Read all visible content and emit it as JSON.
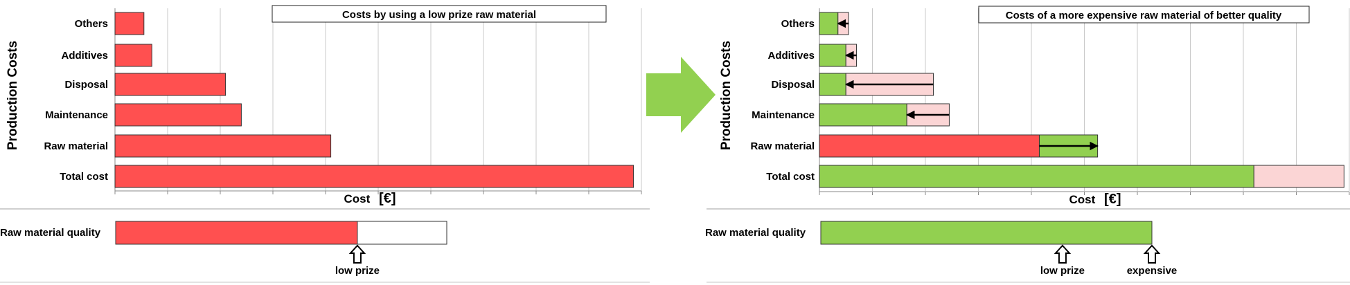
{
  "colors": {
    "red": "#ff5050",
    "green": "#92d050",
    "pink": "#fbd5d5",
    "arrow_fill": "#92d050",
    "grid": "#c8c8c8",
    "border": "#222222"
  },
  "center_arrow": {
    "icon": "right-arrow-icon"
  },
  "chart_data": [
    {
      "type": "bar",
      "orientation": "horizontal",
      "title": "Costs by using a low prize raw material",
      "ylabel": "Production Costs",
      "xlabel": "Cost",
      "xunit": "[€]",
      "categories": [
        "Others",
        "Additives",
        "Disposal",
        "Maintenance",
        "Raw material",
        "Total cost"
      ],
      "xlim": [
        0,
        100
      ],
      "grid": true,
      "series": [
        {
          "color": "#ff5050",
          "values": [
            5.5,
            7,
            21,
            24,
            41,
            98.5
          ]
        }
      ]
    },
    {
      "type": "bar",
      "orientation": "horizontal",
      "title": "Raw material quality",
      "xlim": [
        0,
        100
      ],
      "bars": [
        {
          "category": "Raw material quality",
          "value": 73,
          "max": 100,
          "color": "#ff5050"
        }
      ],
      "markers": [
        {
          "label": "low prize",
          "value": 73
        }
      ]
    },
    {
      "type": "bar",
      "orientation": "horizontal",
      "stacked": true,
      "title": "Costs of a more expensive raw material of better quality",
      "ylabel": "Production Costs",
      "xlabel": "Cost",
      "xunit": "[€]",
      "categories": [
        "Others",
        "Additives",
        "Disposal",
        "Maintenance",
        "Raw material",
        "Total cost"
      ],
      "xlim": [
        0,
        100
      ],
      "grid": true,
      "series": [
        {
          "color": "#92d050",
          "values": [
            3.5,
            5,
            5,
            16.5,
            null,
            82
          ]
        },
        {
          "color": "#ff5050",
          "values": [
            null,
            null,
            null,
            null,
            41.5,
            null
          ]
        },
        {
          "color": "#92d050",
          "values": [
            null,
            null,
            null,
            null,
            11,
            null
          ]
        },
        {
          "color": "#fbd5d5",
          "values": [
            2,
            2,
            16.5,
            8,
            null,
            17
          ]
        }
      ],
      "change_arrows": [
        {
          "category": "Others",
          "from": 5.5,
          "to": 3.5
        },
        {
          "category": "Additives",
          "from": 7,
          "to": 5
        },
        {
          "category": "Disposal",
          "from": 21.5,
          "to": 5
        },
        {
          "category": "Maintenance",
          "from": 24.5,
          "to": 16.5
        },
        {
          "category": "Raw material",
          "from": 41.5,
          "to": 52.5
        }
      ]
    },
    {
      "type": "bar",
      "orientation": "horizontal",
      "title": "Raw material quality",
      "xlim": [
        0,
        100
      ],
      "bars": [
        {
          "category": "Raw material quality",
          "value": 100,
          "max": 100,
          "color": "#92d050"
        }
      ],
      "markers": [
        {
          "label": "low prize",
          "value": 73
        },
        {
          "label": "expensive",
          "value": 100
        }
      ]
    }
  ]
}
